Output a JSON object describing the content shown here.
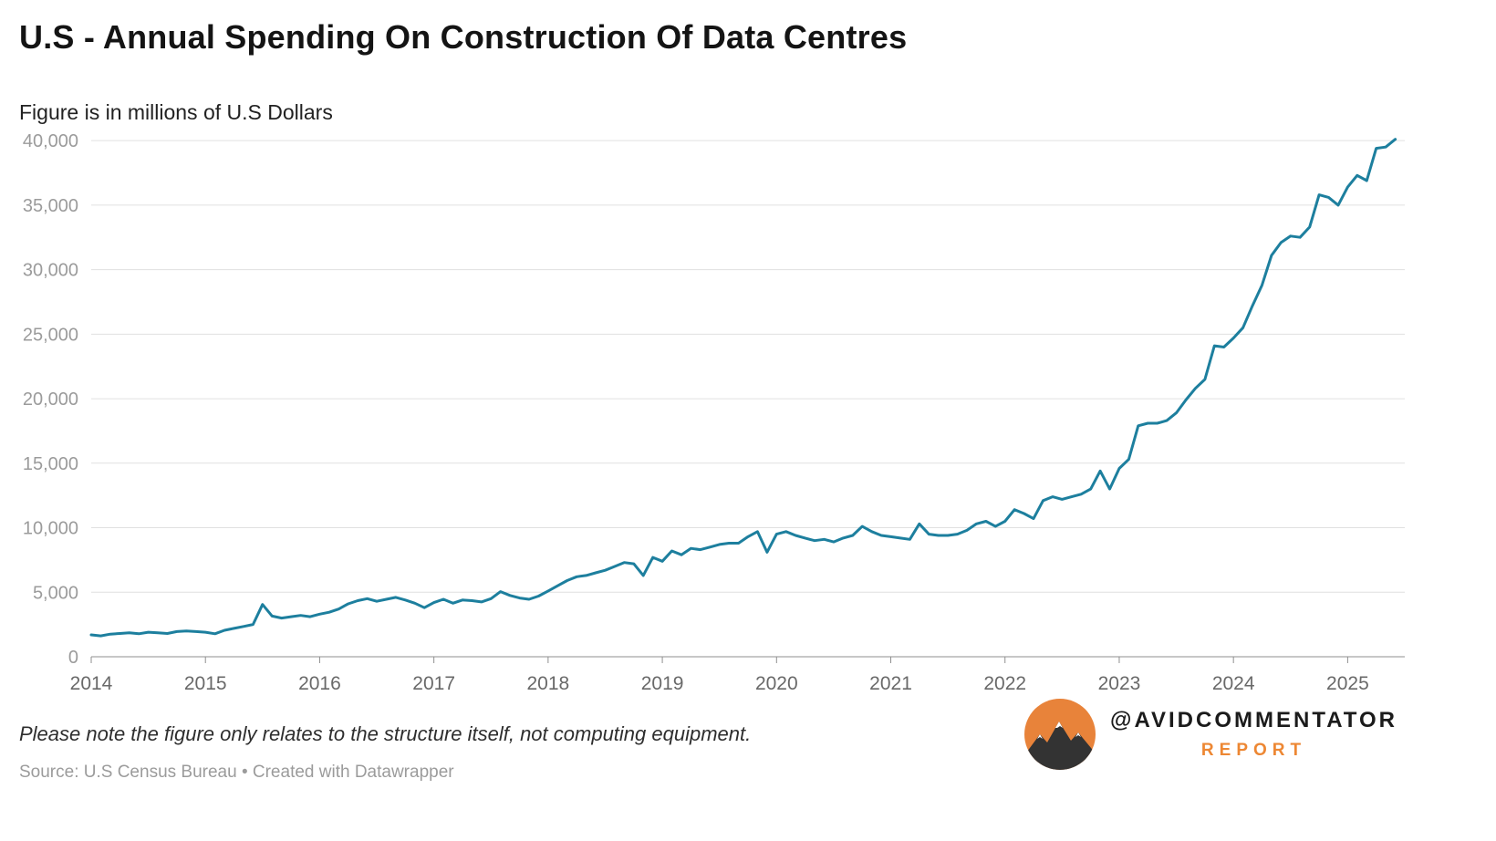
{
  "header": {
    "title": "U.S - Annual Spending On Construction Of Data Centres",
    "subtitle": "Figure is in millions of U.S Dollars"
  },
  "footer": {
    "note": "Please note the figure only relates to the structure itself, not computing equipment.",
    "source": "Source: U.S Census Bureau • Created with Datawrapper"
  },
  "branding": {
    "handle": "@AVIDCOMMENTATOR",
    "label": "REPORT",
    "accent_color": "#ED8733",
    "logo": "mountain-logo-icon"
  },
  "colors": {
    "line": "#1D7F9E",
    "grid": "#E0E0E0",
    "axis": "#8F8F8F",
    "y_label": "#9B9B9B",
    "x_label": "#696969"
  },
  "chart_data": {
    "type": "line",
    "title": "U.S - Annual Spending On Construction Of Data Centres",
    "unit": "millions of U.S Dollars",
    "frequency": "monthly",
    "x_start": "2014-01",
    "x_end": "2025-06",
    "x_tick_labels": [
      "2014",
      "2015",
      "2016",
      "2017",
      "2018",
      "2019",
      "2020",
      "2021",
      "2022",
      "2023",
      "2024",
      "2025"
    ],
    "y_ticks": [
      0,
      5000,
      10000,
      15000,
      20000,
      25000,
      30000,
      35000,
      40000
    ],
    "ylim": [
      0,
      41000
    ],
    "grid": true,
    "legend": false,
    "values": [
      1700,
      1620,
      1750,
      1800,
      1850,
      1780,
      1900,
      1850,
      1800,
      1950,
      2000,
      1950,
      1900,
      1780,
      2050,
      2200,
      2350,
      2500,
      4050,
      3150,
      3000,
      3100,
      3200,
      3100,
      3300,
      3450,
      3700,
      4100,
      4350,
      4500,
      4300,
      4450,
      4600,
      4400,
      4150,
      3800,
      4200,
      4450,
      4150,
      4400,
      4350,
      4250,
      4500,
      5050,
      4750,
      4550,
      4450,
      4700,
      5100,
      5500,
      5900,
      6200,
      6300,
      6500,
      6700,
      7000,
      7300,
      7200,
      6300,
      7700,
      7400,
      8200,
      7900,
      8400,
      8300,
      8500,
      8700,
      8800,
      8800,
      9300,
      9700,
      8100,
      9500,
      9700,
      9400,
      9200,
      9000,
      9100,
      8900,
      9200,
      9400,
      10100,
      9700,
      9400,
      9300,
      9200,
      9100,
      10300,
      9500,
      9400,
      9400,
      9500,
      9800,
      10300,
      10500,
      10100,
      10500,
      11400,
      11100,
      10700,
      12100,
      12400,
      12200,
      12400,
      12600,
      13000,
      14400,
      13000,
      14600,
      15300,
      17900,
      18100,
      18100,
      18300,
      18900,
      19900,
      20800,
      21500,
      24100,
      24000,
      24700,
      25500,
      27200,
      28800,
      31100,
      32100,
      32600,
      32500,
      33300,
      35800,
      35600,
      35000,
      36400,
      37300,
      36900,
      39400,
      39500,
      40100
    ]
  }
}
